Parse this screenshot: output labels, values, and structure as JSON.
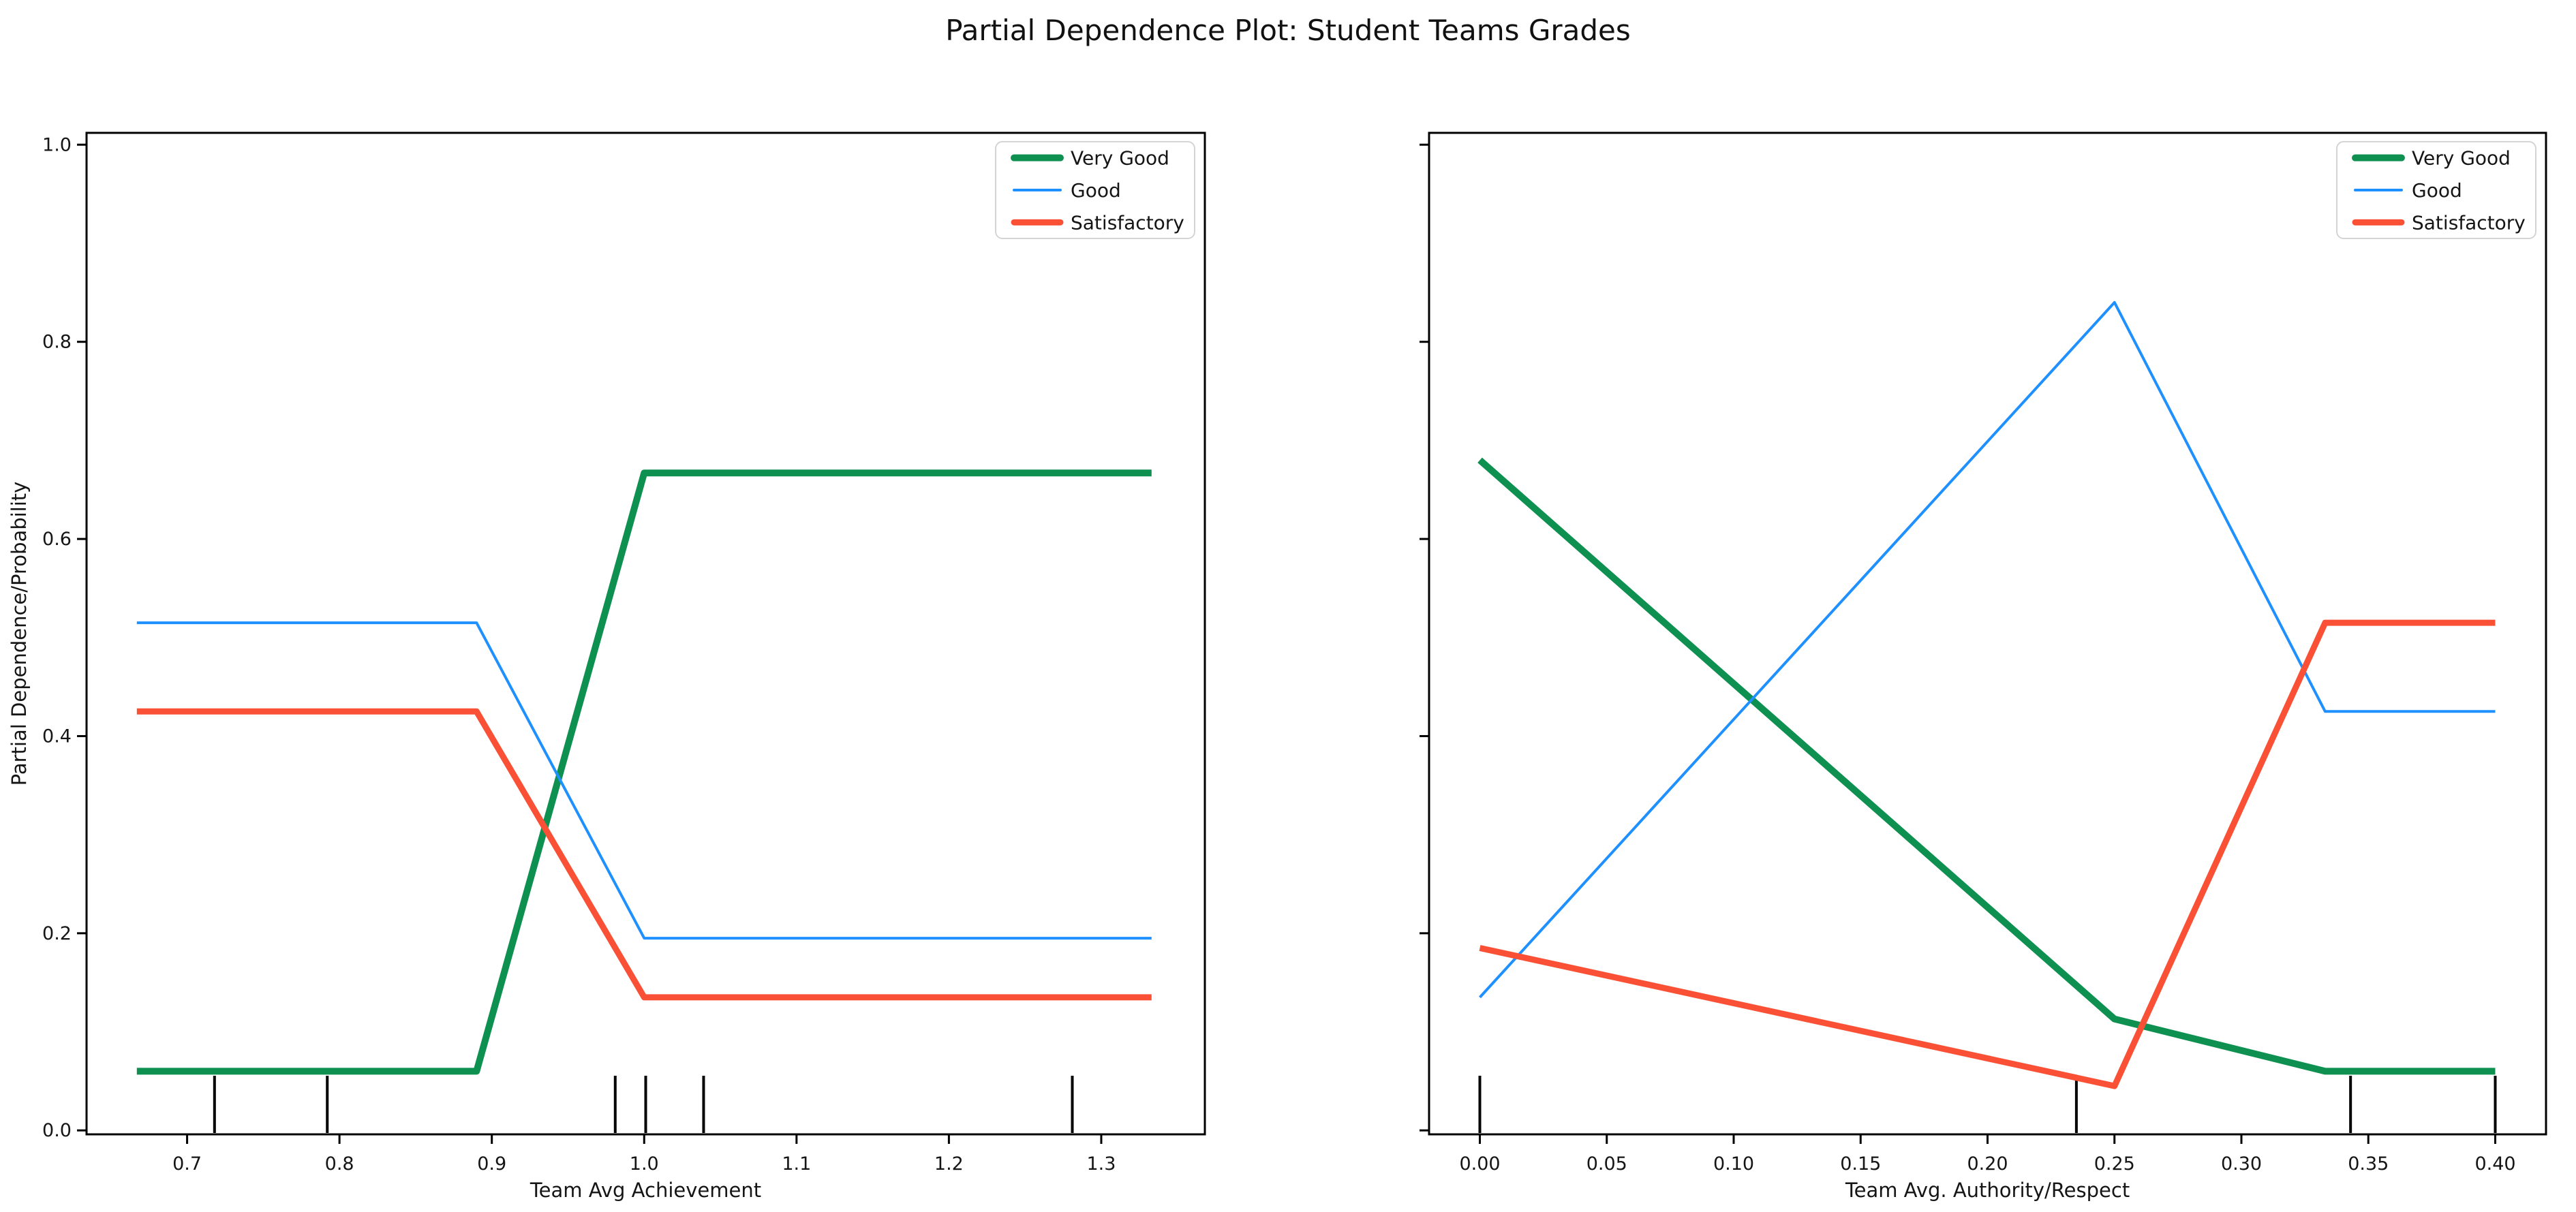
{
  "title": "Partial Dependence Plot: Student Teams Grades",
  "colors": {
    "background": "#ffffff",
    "axis": "#000000",
    "text": "#151515",
    "legend_border": "#d4d4d4",
    "very_good": "#0e9150",
    "good": "#1e90ff",
    "satisfactory": "#fa5136"
  },
  "chart_data": [
    {
      "type": "line",
      "title": "",
      "xlabel": "Team Avg Achievement",
      "ylabel": "Partial Dependence/Probability",
      "xlim": [
        0.634,
        1.368
      ],
      "ylim": [
        -0.004,
        1.012
      ],
      "grid": false,
      "legend_position": "top-right",
      "legend_entries": [
        "Very Good",
        "Good",
        "Satisfactory"
      ],
      "xticks": [
        0.7,
        0.8,
        0.9,
        1.0,
        1.1,
        1.2,
        1.3
      ],
      "xtick_labels": [
        "0.7",
        "0.8",
        "0.9",
        "1.0",
        "1.1",
        "1.2",
        "1.3"
      ],
      "yticks": [
        0.0,
        0.2,
        0.4,
        0.6,
        0.8,
        1.0
      ],
      "ytick_labels": [
        "0.0",
        "0.2",
        "0.4",
        "0.6",
        "0.8",
        "1.0"
      ],
      "show_ytick_labels": true,
      "series": [
        {
          "name": "Very Good",
          "color": "#0e9150",
          "line_width": 10,
          "x": [
            0.667,
            0.89,
            1.0,
            1.333
          ],
          "y": [
            0.06,
            0.06,
            0.667,
            0.667
          ]
        },
        {
          "name": "Good",
          "color": "#1e90ff",
          "line_width": 4,
          "x": [
            0.667,
            0.89,
            1.0,
            1.333
          ],
          "y": [
            0.515,
            0.515,
            0.195,
            0.195
          ]
        },
        {
          "name": "Satisfactory",
          "color": "#fa5136",
          "line_width": 9,
          "x": [
            0.667,
            0.89,
            1.0,
            1.333
          ],
          "y": [
            0.425,
            0.425,
            0.135,
            0.135
          ]
        }
      ],
      "rug_x": [
        0.718,
        0.792,
        0.981,
        1.001,
        1.039,
        1.281
      ]
    },
    {
      "type": "line",
      "title": "",
      "xlabel": "Team Avg. Authority/Respect",
      "ylabel": "",
      "xlim": [
        -0.02,
        0.42
      ],
      "ylim": [
        -0.004,
        1.012
      ],
      "grid": false,
      "legend_position": "top-right",
      "legend_entries": [
        "Very Good",
        "Good",
        "Satisfactory"
      ],
      "xticks": [
        0.0,
        0.05,
        0.1,
        0.15,
        0.2,
        0.25,
        0.3,
        0.35,
        0.4
      ],
      "xtick_labels": [
        "0.00",
        "0.05",
        "0.10",
        "0.15",
        "0.20",
        "0.25",
        "0.30",
        "0.35",
        "0.40"
      ],
      "yticks": [
        0.0,
        0.2,
        0.4,
        0.6,
        0.8,
        1.0
      ],
      "ytick_labels": [
        "0.0",
        "0.2",
        "0.4",
        "0.6",
        "0.8",
        "1.0"
      ],
      "show_ytick_labels": false,
      "series": [
        {
          "name": "Very Good",
          "color": "#0e9150",
          "line_width": 10,
          "x": [
            0.0,
            0.25,
            0.333,
            0.4
          ],
          "y": [
            0.68,
            0.113,
            0.06,
            0.06
          ]
        },
        {
          "name": "Good",
          "color": "#1e90ff",
          "line_width": 4,
          "x": [
            0.0,
            0.25,
            0.333,
            0.4
          ],
          "y": [
            0.135,
            0.84,
            0.425,
            0.425
          ]
        },
        {
          "name": "Satisfactory",
          "color": "#fa5136",
          "line_width": 9,
          "x": [
            0.0,
            0.25,
            0.333,
            0.4
          ],
          "y": [
            0.185,
            0.045,
            0.515,
            0.515
          ]
        }
      ],
      "rug_x": [
        0.0,
        0.235,
        0.343,
        0.4
      ]
    }
  ]
}
